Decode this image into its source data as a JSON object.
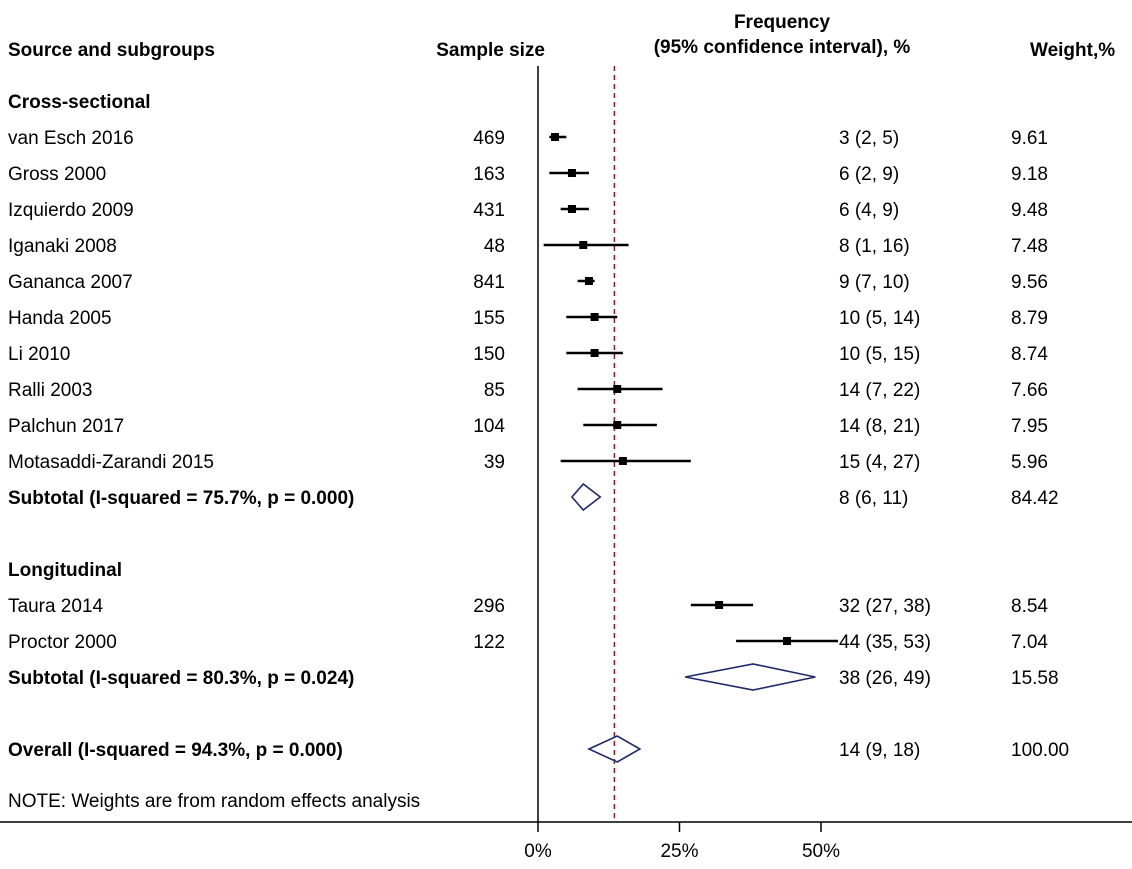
{
  "header": {
    "source_label": "Source and subgroups",
    "sample_label": "Sample size",
    "freq_label_line1": "Frequency",
    "freq_label_line2": "(95% confidence interval), %",
    "weight_label": "Weight,%"
  },
  "note": "NOTE: Weights are from random effects analysis",
  "colors": {
    "marker": "#000000",
    "diamond": "#1f2a6b",
    "reference_line": "#8b1a1a",
    "axis": "#000000"
  },
  "chart_data": {
    "type": "forest",
    "x_axis": {
      "range": [
        0,
        55
      ],
      "ticks": [
        0,
        25,
        50
      ],
      "tick_labels": [
        "0%",
        "25%",
        "50%"
      ]
    },
    "reference_line": 13.5,
    "rows": [
      {
        "kind": "group",
        "label": "Cross-sectional"
      },
      {
        "kind": "study",
        "label": "van Esch 2016",
        "n": "469",
        "est": 3,
        "lo": 2,
        "hi": 5,
        "ci_text": "3 (2, 5)",
        "weight": "9.61"
      },
      {
        "kind": "study",
        "label": "Gross 2000",
        "n": "163",
        "est": 6,
        "lo": 2,
        "hi": 9,
        "ci_text": "6 (2, 9)",
        "weight": "9.18"
      },
      {
        "kind": "study",
        "label": "Izquierdo 2009",
        "n": "431",
        "est": 6,
        "lo": 4,
        "hi": 9,
        "ci_text": "6 (4, 9)",
        "weight": "9.48"
      },
      {
        "kind": "study",
        "label": "Iganaki 2008",
        "n": "48",
        "est": 8,
        "lo": 1,
        "hi": 16,
        "ci_text": "8 (1, 16)",
        "weight": "7.48"
      },
      {
        "kind": "study",
        "label": "Gananca 2007",
        "n": "841",
        "est": 9,
        "lo": 7,
        "hi": 10,
        "ci_text": "9 (7, 10)",
        "weight": "9.56"
      },
      {
        "kind": "study",
        "label": "Handa 2005",
        "n": "155",
        "est": 10,
        "lo": 5,
        "hi": 14,
        "ci_text": "10 (5, 14)",
        "weight": "8.79"
      },
      {
        "kind": "study",
        "label": "Li 2010",
        "n": "150",
        "est": 10,
        "lo": 5,
        "hi": 15,
        "ci_text": "10 (5, 15)",
        "weight": "8.74"
      },
      {
        "kind": "study",
        "label": "Ralli 2003",
        "n": "85",
        "est": 14,
        "lo": 7,
        "hi": 22,
        "ci_text": "14 (7, 22)",
        "weight": "7.66"
      },
      {
        "kind": "study",
        "label": "Palchun 2017",
        "n": "104",
        "est": 14,
        "lo": 8,
        "hi": 21,
        "ci_text": "14 (8, 21)",
        "weight": "7.95"
      },
      {
        "kind": "study",
        "label": "Motasaddi-Zarandi 2015",
        "n": "39",
        "est": 15,
        "lo": 4,
        "hi": 27,
        "ci_text": "15 (4, 27)",
        "weight": "5.96"
      },
      {
        "kind": "subtotal",
        "label": "Subtotal  (I-squared = 75.7%, p = 0.000)",
        "est": 8,
        "lo": 6,
        "hi": 11,
        "ci_text": "8 (6, 11)",
        "weight": "84.42"
      },
      {
        "kind": "blank"
      },
      {
        "kind": "group",
        "label": "Longitudinal"
      },
      {
        "kind": "study",
        "label": "Taura 2014",
        "n": "296",
        "est": 32,
        "lo": 27,
        "hi": 38,
        "ci_text": "32 (27, 38)",
        "weight": "8.54"
      },
      {
        "kind": "study",
        "label": "Proctor 2000",
        "n": "122",
        "est": 44,
        "lo": 35,
        "hi": 53,
        "ci_text": "44 (35, 53)",
        "weight": "7.04"
      },
      {
        "kind": "subtotal",
        "label": "Subtotal  (I-squared = 80.3%, p = 0.024)",
        "est": 38,
        "lo": 26,
        "hi": 49,
        "ci_text": "38 (26, 49)",
        "weight": "15.58"
      },
      {
        "kind": "blank"
      },
      {
        "kind": "overall",
        "label": "Overall  (I-squared = 94.3%, p = 0.000)",
        "est": 14,
        "lo": 9,
        "hi": 18,
        "ci_text": "14 (9, 18)",
        "weight": "100.00"
      }
    ]
  }
}
